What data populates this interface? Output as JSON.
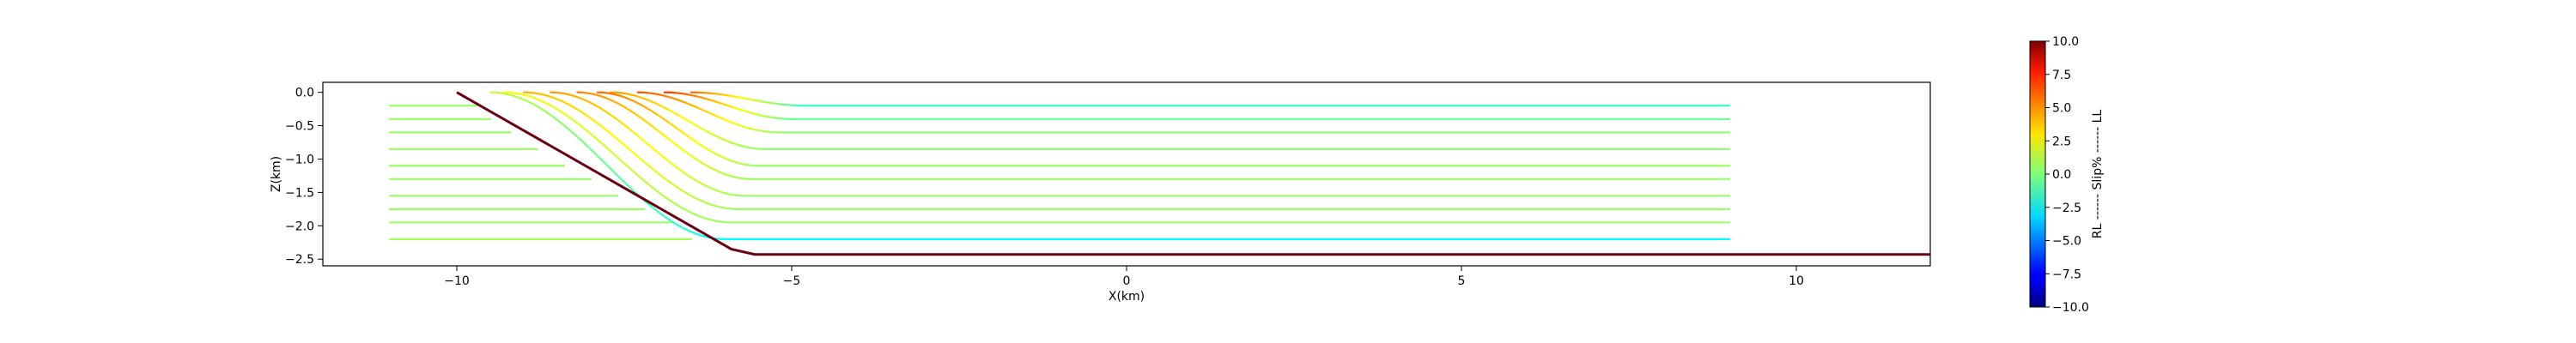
{
  "chart_data": {
    "type": "line",
    "title": "",
    "xlabel": "X(km)",
    "ylabel": "Z(km)",
    "xlim": [
      -12,
      12
    ],
    "ylim": [
      -2.6,
      0.15
    ],
    "grid": false,
    "x_ticks": [
      -10,
      -5,
      0,
      5,
      10
    ],
    "x_tick_labels": [
      "−10",
      "−5",
      "0",
      "5",
      "10"
    ],
    "y_ticks": [
      0.0,
      -0.5,
      -1.0,
      -1.5,
      -2.0,
      -2.5
    ],
    "y_tick_labels": [
      "0.0",
      "−0.5",
      "−1.0",
      "−1.5",
      "−2.0",
      "−2.5"
    ],
    "fault_trace": {
      "name": "",
      "color": "#6b0010",
      "x": [
        -10,
        -5.9,
        -5.55,
        12
      ],
      "z": [
        0.0,
        -2.35,
        -2.43,
        -2.43
      ]
    },
    "left_lines": [
      {
        "x_start": -11.0,
        "x_end": -9.7,
        "z": -0.2,
        "value": 0.5
      },
      {
        "x_start": -11.0,
        "x_end": -9.5,
        "z": -0.4,
        "value": 0.5
      },
      {
        "x_start": -11.0,
        "x_end": -9.2,
        "z": -0.6,
        "value": 0.5
      },
      {
        "x_start": -11.0,
        "x_end": -8.8,
        "z": -0.85,
        "value": 0.5
      },
      {
        "x_start": -11.0,
        "x_end": -8.4,
        "z": -1.1,
        "value": 0.5
      },
      {
        "x_start": -11.0,
        "x_end": -8.0,
        "z": -1.3,
        "value": 0.5
      },
      {
        "x_start": -11.0,
        "x_end": -7.6,
        "z": -1.55,
        "value": 0.5
      },
      {
        "x_start": -11.0,
        "x_end": -7.2,
        "z": -1.75,
        "value": 0.5
      },
      {
        "x_start": -11.0,
        "x_end": -6.8,
        "z": -1.95,
        "value": 0.5
      },
      {
        "x_start": -11.0,
        "x_end": -6.5,
        "z": -2.2,
        "value": 0.7
      }
    ],
    "curved_lines": [
      {
        "z_flat": -0.2,
        "x_bend_start": -6.5,
        "x_bend_end": -4.8,
        "start_value": 5.5,
        "end_value": -1.5,
        "flat_value": -1.5
      },
      {
        "z_flat": -0.4,
        "x_bend_start": -6.9,
        "x_bend_end": -5.0,
        "start_value": 6.5,
        "end_value": -0.5,
        "flat_value": -0.5
      },
      {
        "z_flat": -0.6,
        "x_bend_start": -7.3,
        "x_bend_end": -5.2,
        "start_value": 6.0,
        "end_value": 0.5,
        "flat_value": 0.3
      },
      {
        "z_flat": -0.85,
        "x_bend_start": -7.7,
        "x_bend_end": -5.4,
        "start_value": 4.5,
        "end_value": 0.3,
        "flat_value": 0.3
      },
      {
        "z_flat": -1.1,
        "x_bend_start": -7.9,
        "x_bend_end": -5.5,
        "start_value": 5.5,
        "end_value": 0.5,
        "flat_value": 0.5
      },
      {
        "z_flat": -1.3,
        "x_bend_start": -8.2,
        "x_bend_end": -5.6,
        "start_value": 5.0,
        "end_value": 0.5,
        "flat_value": 0.5
      },
      {
        "z_flat": -1.55,
        "x_bend_start": -8.6,
        "x_bend_end": -5.7,
        "start_value": 4.5,
        "end_value": 0.5,
        "flat_value": 0.5
      },
      {
        "z_flat": -1.75,
        "x_bend_start": -9.0,
        "x_bend_end": -5.8,
        "start_value": 4.0,
        "end_value": 0.5,
        "flat_value": 0.5
      },
      {
        "z_flat": -1.95,
        "x_bend_start": -9.3,
        "x_bend_end": -5.9,
        "start_value": 2.5,
        "end_value": 0.5,
        "flat_value": 0.5
      },
      {
        "z_flat": -2.2,
        "x_bend_start": -9.5,
        "x_bend_end": -6.0,
        "start_value": 1.5,
        "end_value": -2.5,
        "flat_value": -2.5
      }
    ],
    "curved_lines_x_end": 9.0,
    "colorbar": {
      "label": "RL ------ Slip% ------ LL",
      "vmin": -10.0,
      "vmax": 10.0,
      "ticks": [
        10.0,
        7.5,
        5.0,
        2.5,
        0.0,
        -2.5,
        -5.0,
        -7.5,
        -10.0
      ],
      "tick_labels": [
        "10.0",
        "7.5",
        "5.0",
        "2.5",
        "0.0",
        "−2.5",
        "−5.0",
        "−7.5",
        "−10.0"
      ],
      "colormap": "jet"
    }
  }
}
